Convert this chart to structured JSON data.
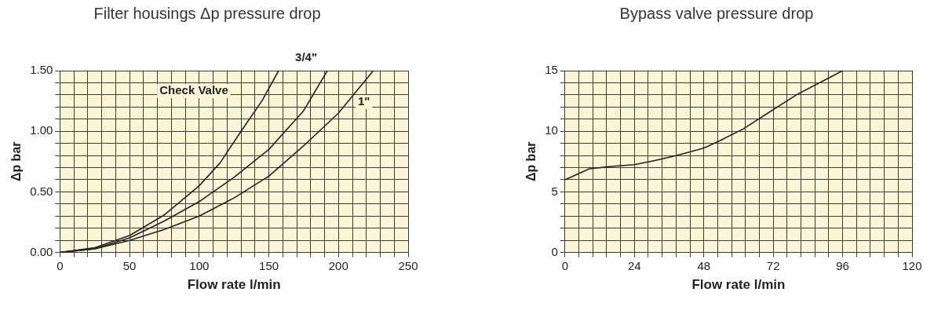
{
  "chart_data": [
    {
      "type": "line",
      "title": "Filter housings Δp pressure drop",
      "xlabel": "Flow rate l/min",
      "ylabel": "Δp bar",
      "xlim": [
        0,
        250
      ],
      "ylim": [
        0,
        1.5
      ],
      "xticks": [
        0,
        {
          "value": 10,
          "label": null
        },
        {
          "value": 20,
          "label": null
        },
        {
          "value": 30,
          "label": null
        },
        {
          "value": 40,
          "label": null
        },
        50,
        {
          "value": 60,
          "label": null
        },
        {
          "value": 70,
          "label": null
        },
        {
          "value": 80,
          "label": null
        },
        {
          "value": 90,
          "label": null
        },
        100,
        {
          "value": 110,
          "label": null
        },
        {
          "value": 120,
          "label": null
        },
        {
          "value": 130,
          "label": null
        },
        {
          "value": 140,
          "label": null
        },
        150,
        {
          "value": 160,
          "label": null
        },
        {
          "value": 170,
          "label": null
        },
        {
          "value": 180,
          "label": null
        },
        {
          "value": 190,
          "label": null
        },
        200,
        {
          "value": 210,
          "label": null
        },
        {
          "value": 220,
          "label": null
        },
        {
          "value": 230,
          "label": null
        },
        {
          "value": 240,
          "label": null
        },
        250
      ],
      "yticks": [
        {
          "value": 0,
          "label": "0.00"
        },
        {
          "value": 0.1,
          "label": null
        },
        {
          "value": 0.2,
          "label": null
        },
        {
          "value": 0.3,
          "label": null
        },
        {
          "value": 0.4,
          "label": null
        },
        {
          "value": 0.5,
          "label": "0.50"
        },
        {
          "value": 0.6,
          "label": null
        },
        {
          "value": 0.7,
          "label": null
        },
        {
          "value": 0.8,
          "label": null
        },
        {
          "value": 0.9,
          "label": null
        },
        {
          "value": 1,
          "label": "1.00"
        },
        {
          "value": 1.1,
          "label": null
        },
        {
          "value": 1.2,
          "label": null
        },
        {
          "value": 1.3,
          "label": null
        },
        {
          "value": 1.4,
          "label": null
        },
        {
          "value": 1.5,
          "label": "1.50"
        }
      ],
      "grid": true,
      "legend": false,
      "series": [
        {
          "name": "Check Valve",
          "color": "#222222",
          "x": [
            0,
            25,
            50,
            75,
            100,
            115,
            130,
            145,
            157
          ],
          "values": [
            0,
            0.04,
            0.14,
            0.31,
            0.55,
            0.74,
            1.0,
            1.25,
            1.5
          ]
        },
        {
          "name": "3/4\"",
          "color": "#222222",
          "x": [
            0,
            25,
            50,
            75,
            100,
            125,
            150,
            175,
            192
          ],
          "values": [
            0,
            0.03,
            0.12,
            0.26,
            0.42,
            0.62,
            0.85,
            1.17,
            1.5
          ]
        },
        {
          "name": "1\"",
          "color": "#222222",
          "x": [
            0,
            25,
            50,
            75,
            100,
            125,
            150,
            175,
            200,
            225
          ],
          "values": [
            0,
            0.03,
            0.1,
            0.19,
            0.3,
            0.45,
            0.63,
            0.88,
            1.15,
            1.5
          ]
        }
      ]
    },
    {
      "type": "line",
      "title": "Bypass valve pressure drop",
      "xlabel": "Flow rate l/min",
      "ylabel": "Δp bar",
      "xlim": [
        0,
        120
      ],
      "ylim": [
        0,
        15
      ],
      "xticks": [
        0,
        {
          "value": 4.8,
          "label": null
        },
        {
          "value": 9.6,
          "label": null
        },
        {
          "value": 14.4,
          "label": null
        },
        {
          "value": 19.2,
          "label": null
        },
        24,
        {
          "value": 28.8,
          "label": null
        },
        {
          "value": 33.6,
          "label": null
        },
        {
          "value": 38.4,
          "label": null
        },
        {
          "value": 43.2,
          "label": null
        },
        48,
        {
          "value": 52.8,
          "label": null
        },
        {
          "value": 57.6,
          "label": null
        },
        {
          "value": 62.4,
          "label": null
        },
        {
          "value": 67.2,
          "label": null
        },
        72,
        {
          "value": 76.8,
          "label": null
        },
        {
          "value": 81.6,
          "label": null
        },
        {
          "value": 86.4,
          "label": null
        },
        {
          "value": 91.2,
          "label": null
        },
        96,
        {
          "value": 100.8,
          "label": null
        },
        {
          "value": 105.6,
          "label": null
        },
        {
          "value": 110.4,
          "label": null
        },
        {
          "value": 115.2,
          "label": null
        },
        120
      ],
      "yticks": [
        0,
        {
          "value": 1,
          "label": null
        },
        {
          "value": 2,
          "label": null
        },
        {
          "value": 3,
          "label": null
        },
        {
          "value": 4,
          "label": null
        },
        5,
        {
          "value": 6,
          "label": null
        },
        {
          "value": 7,
          "label": null
        },
        {
          "value": 8,
          "label": null
        },
        {
          "value": 9,
          "label": null
        },
        10,
        {
          "value": 11,
          "label": null
        },
        {
          "value": 12,
          "label": null
        },
        {
          "value": 13,
          "label": null
        },
        {
          "value": 14,
          "label": null
        },
        15
      ],
      "grid": true,
      "legend": false,
      "series": [
        {
          "color": "#222222",
          "x": [
            0,
            8.4,
            16,
            24,
            31.4,
            38.7,
            47.9,
            53.4,
            61.7,
            70.8,
            80,
            88,
            96
          ],
          "values": [
            6.0,
            6.9,
            7.1,
            7.24,
            7.6,
            8.0,
            8.6,
            9.2,
            10.2,
            11.6,
            13.0,
            14.0,
            15.0
          ]
        }
      ]
    }
  ]
}
